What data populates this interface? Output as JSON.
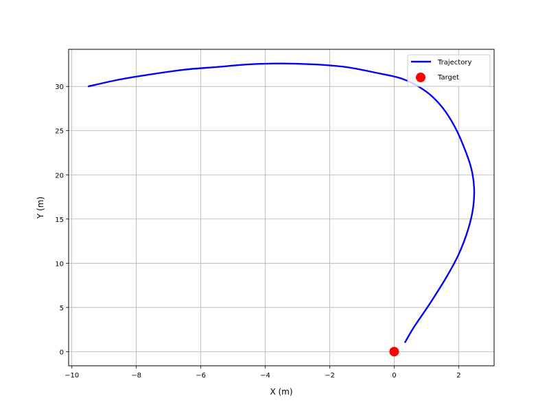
{
  "chart_data": {
    "type": "line",
    "title": "",
    "xlabel": "X (m)",
    "ylabel": "Y (m)",
    "xlim": [
      -10.1,
      3.1
    ],
    "ylim": [
      -1.6,
      34.2
    ],
    "x_ticks": [
      -10,
      -8,
      -6,
      -4,
      -2,
      0,
      2
    ],
    "y_ticks": [
      0,
      5,
      10,
      15,
      20,
      25,
      30
    ],
    "grid": true,
    "legend_position": "top-right",
    "series": [
      {
        "name": "Trajectory",
        "kind": "line",
        "color": "#0000ff",
        "x": [
          -9.5,
          -8.5,
          -7.5,
          -6.5,
          -5.5,
          -4.5,
          -3.5,
          -2.5,
          -1.5,
          -0.5,
          0.3,
          1.0,
          1.5,
          1.9,
          2.2,
          2.4,
          2.48,
          2.45,
          2.3,
          2.0,
          1.6,
          1.1,
          0.6,
          0.33
        ],
        "y": [
          30.0,
          30.8,
          31.4,
          31.9,
          32.2,
          32.5,
          32.6,
          32.5,
          32.2,
          31.5,
          30.8,
          29.4,
          27.6,
          25.3,
          22.8,
          20.6,
          18.5,
          16.3,
          13.9,
          11.0,
          8.3,
          5.4,
          2.7,
          1.0
        ]
      },
      {
        "name": "Target",
        "kind": "scatter",
        "color": "#ff0000",
        "x": [
          0
        ],
        "y": [
          0
        ]
      }
    ]
  }
}
